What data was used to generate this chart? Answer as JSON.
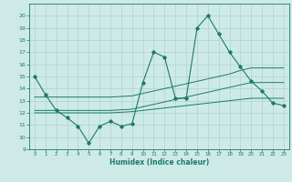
{
  "xlabel": "Humidex (Indice chaleur)",
  "bg_color": "#ceeae6",
  "grid_color": "#aed4cf",
  "line_color": "#1a7a6e",
  "x": [
    0,
    1,
    2,
    3,
    4,
    5,
    6,
    7,
    8,
    9,
    10,
    11,
    12,
    13,
    14,
    15,
    16,
    17,
    18,
    19,
    20,
    21,
    22,
    23
  ],
  "y_main": [
    15.0,
    13.5,
    12.2,
    11.6,
    10.9,
    9.5,
    10.9,
    11.3,
    10.9,
    11.1,
    14.5,
    17.0,
    16.6,
    13.2,
    13.2,
    19.0,
    20.0,
    18.5,
    17.0,
    15.8,
    14.6,
    13.8,
    12.8,
    12.6
  ],
  "y_line2": [
    13.3,
    13.3,
    13.3,
    13.3,
    13.3,
    13.3,
    13.3,
    13.3,
    13.35,
    13.4,
    13.6,
    13.8,
    14.0,
    14.2,
    14.4,
    14.6,
    14.8,
    15.0,
    15.2,
    15.5,
    15.7,
    15.7,
    15.7,
    15.7
  ],
  "y_line3": [
    12.2,
    12.2,
    12.2,
    12.2,
    12.2,
    12.2,
    12.2,
    12.2,
    12.25,
    12.3,
    12.5,
    12.7,
    12.9,
    13.1,
    13.3,
    13.5,
    13.7,
    13.9,
    14.1,
    14.3,
    14.5,
    14.5,
    14.5,
    14.5
  ],
  "y_line4": [
    12.0,
    12.0,
    12.0,
    12.0,
    12.0,
    12.0,
    12.0,
    12.0,
    12.05,
    12.1,
    12.2,
    12.3,
    12.4,
    12.5,
    12.6,
    12.7,
    12.8,
    12.9,
    13.0,
    13.1,
    13.2,
    13.2,
    13.2,
    13.2
  ],
  "ylim": [
    9,
    21
  ],
  "xlim": [
    -0.5,
    23.5
  ],
  "yticks": [
    9,
    10,
    11,
    12,
    13,
    14,
    15,
    16,
    17,
    18,
    19,
    20
  ],
  "xticks": [
    0,
    1,
    2,
    3,
    4,
    5,
    6,
    7,
    8,
    9,
    10,
    11,
    12,
    13,
    14,
    15,
    16,
    17,
    18,
    19,
    20,
    21,
    22,
    23
  ]
}
